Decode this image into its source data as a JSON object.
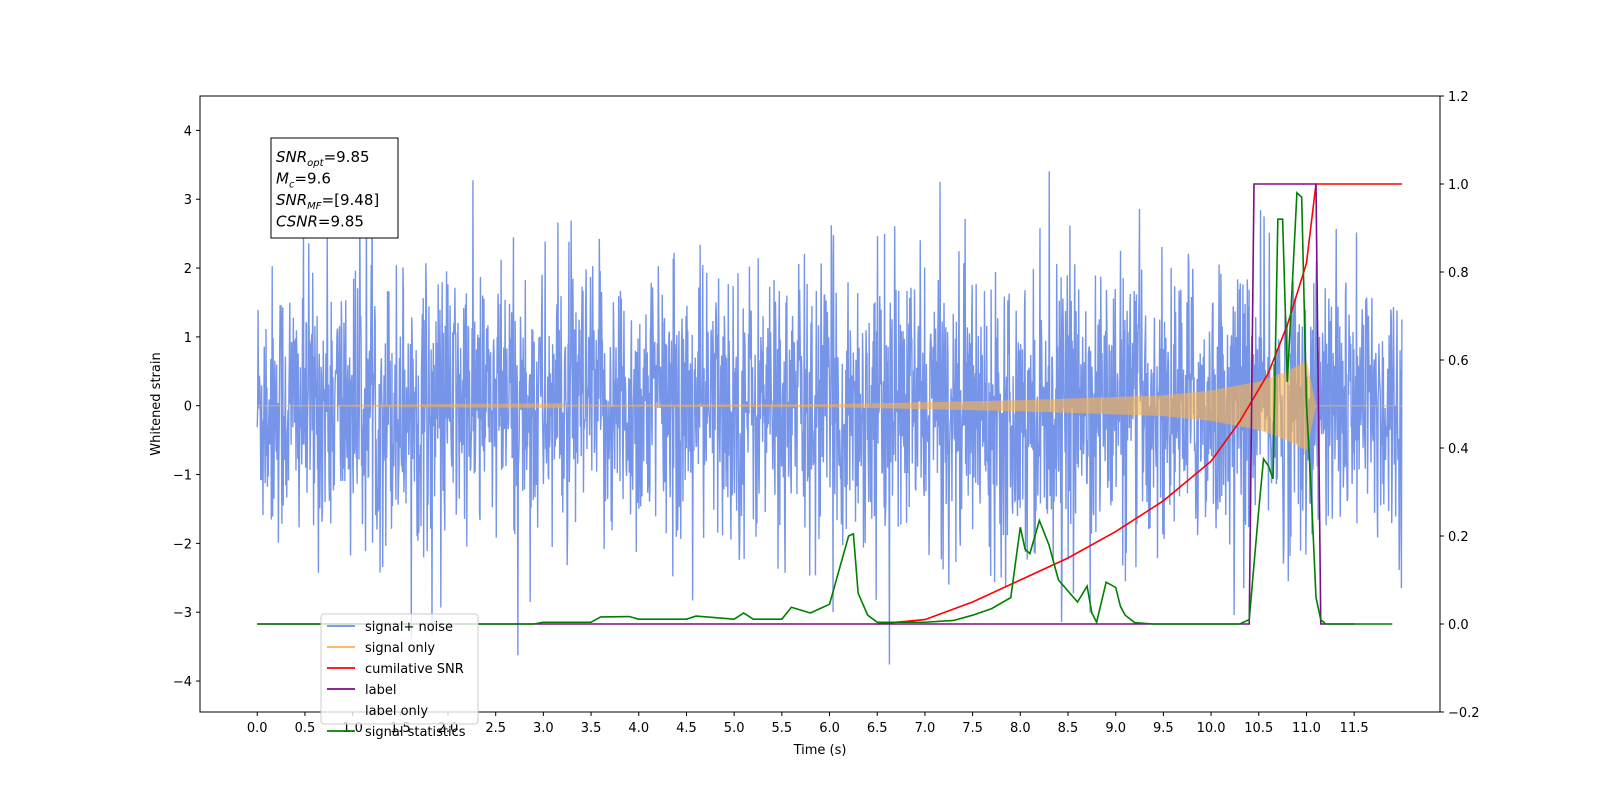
{
  "chart_data": {
    "type": "line",
    "title": "",
    "xlabel": "Time (s)",
    "ylabel": "Whitened strain",
    "y2label": "",
    "xlim": [
      -0.6,
      12.4
    ],
    "ylim": [
      -4.45,
      4.5
    ],
    "y2lim": [
      -0.2,
      1.2
    ],
    "x_ticks": [
      0.0,
      0.5,
      1.0,
      1.5,
      2.0,
      2.5,
      3.0,
      3.5,
      4.0,
      4.5,
      5.0,
      5.5,
      6.0,
      6.5,
      7.0,
      7.5,
      8.0,
      8.5,
      9.0,
      9.5,
      10.0,
      10.5,
      11.0,
      11.5
    ],
    "x_tick_labels": [
      "0.0",
      "0.5",
      "1.0",
      "1.5",
      "2.0",
      "2.5",
      "3.0",
      "3.5",
      "4.0",
      "4.5",
      "5.0",
      "5.5",
      "6.0",
      "6.5",
      "7.0",
      "7.5",
      "8.0",
      "8.5",
      "9.0",
      "9.5",
      "10.0",
      "10.5",
      "11.0",
      "11.5"
    ],
    "y_ticks": [
      -4,
      -3,
      -2,
      -1,
      0,
      1,
      2,
      3,
      4
    ],
    "y_tick_labels": [
      "−4",
      "−3",
      "−2",
      "−1",
      "0",
      "1",
      "2",
      "3",
      "4"
    ],
    "y2_ticks": [
      -0.2,
      0.0,
      0.2,
      0.4,
      0.6,
      0.8,
      1.0,
      1.2
    ],
    "y2_tick_labels": [
      "−0.2",
      "0.0",
      "0.2",
      "0.4",
      "0.6",
      "0.8",
      "1.0",
      "1.2"
    ],
    "grid": false,
    "legend_position": "lower-left",
    "annotation": {
      "lines": [
        {
          "base": "SNR",
          "sub": "opt",
          "value": "=9.85"
        },
        {
          "base": "M",
          "sub": "c",
          "value": "=9.6"
        },
        {
          "base": "SNR",
          "sub": "MF",
          "value": "=[9.48]"
        },
        {
          "base": "CSNR",
          "sub": "",
          "value": "=9.85"
        }
      ]
    },
    "series": [
      {
        "name": "signal+ noise",
        "axis": "left",
        "color": "#6b8ce6",
        "kind": "noise",
        "x_range": [
          0.0,
          12.0
        ],
        "typical_abs": 2.0,
        "peak_abs": 4.1
      },
      {
        "name": "signal only",
        "axis": "left",
        "color": "#ffb347",
        "kind": "chirp",
        "x_range": [
          0.0,
          12.0
        ],
        "amplitude_envelope": {
          "x": [
            0.0,
            6.0,
            8.0,
            9.5,
            10.0,
            10.5,
            10.8,
            11.0,
            11.1,
            11.2,
            12.0
          ],
          "y": [
            0.0,
            0.02,
            0.08,
            0.15,
            0.22,
            0.35,
            0.5,
            0.65,
            0.0,
            0.0,
            0.0
          ]
        }
      },
      {
        "name": "cumilative SNR",
        "axis": "right",
        "color": "#ff0000",
        "x": [
          6.5,
          7.0,
          7.5,
          8.0,
          8.5,
          9.0,
          9.5,
          10.0,
          10.3,
          10.6,
          10.8,
          11.0,
          11.1,
          12.0
        ],
        "values": [
          0.0,
          0.01,
          0.05,
          0.1,
          0.15,
          0.21,
          0.28,
          0.37,
          0.46,
          0.57,
          0.68,
          0.82,
          1.0,
          1.0
        ]
      },
      {
        "name": "label",
        "axis": "right",
        "color": "#7b0d88",
        "x": [
          0.0,
          10.4,
          10.45,
          11.1,
          11.15,
          11.5
        ],
        "values": [
          0.0,
          0.0,
          1.0,
          1.0,
          0.0,
          0.0
        ]
      },
      {
        "name": "label only",
        "axis": "right",
        "color": "#b8b8b8",
        "hidden_behind_legend": true,
        "x": [],
        "values": []
      },
      {
        "name": "signal statistics",
        "axis": "right",
        "color": "#008000",
        "x": [
          0.0,
          2.9,
          3.0,
          3.5,
          3.6,
          3.9,
          4.0,
          4.5,
          4.6,
          5.0,
          5.1,
          5.2,
          5.5,
          5.6,
          5.8,
          6.0,
          6.2,
          6.25,
          6.3,
          6.4,
          6.5,
          7.0,
          7.3,
          7.5,
          7.7,
          7.9,
          8.0,
          8.05,
          8.1,
          8.2,
          8.3,
          8.4,
          8.6,
          8.7,
          8.75,
          8.8,
          8.9,
          9.0,
          9.05,
          9.1,
          9.2,
          9.4,
          9.6,
          10.3,
          10.4,
          10.5,
          10.55,
          10.6,
          10.65,
          10.7,
          10.75,
          10.8,
          10.9,
          10.95,
          11.0,
          11.05,
          11.1,
          11.15,
          11.2,
          11.9
        ],
        "values": [
          0.0,
          0.0,
          0.004,
          0.004,
          0.016,
          0.017,
          0.011,
          0.011,
          0.018,
          0.011,
          0.025,
          0.011,
          0.011,
          0.038,
          0.025,
          0.045,
          0.2,
          0.205,
          0.07,
          0.02,
          0.004,
          0.004,
          0.008,
          0.02,
          0.035,
          0.06,
          0.22,
          0.17,
          0.16,
          0.235,
          0.18,
          0.1,
          0.05,
          0.086,
          0.025,
          0.004,
          0.095,
          0.083,
          0.04,
          0.02,
          0.003,
          0.0,
          0.0,
          0.0,
          0.01,
          0.26,
          0.375,
          0.36,
          0.33,
          0.92,
          0.92,
          0.55,
          0.98,
          0.97,
          0.5,
          0.3,
          0.06,
          0.01,
          0.0,
          0.0
        ]
      }
    ]
  }
}
